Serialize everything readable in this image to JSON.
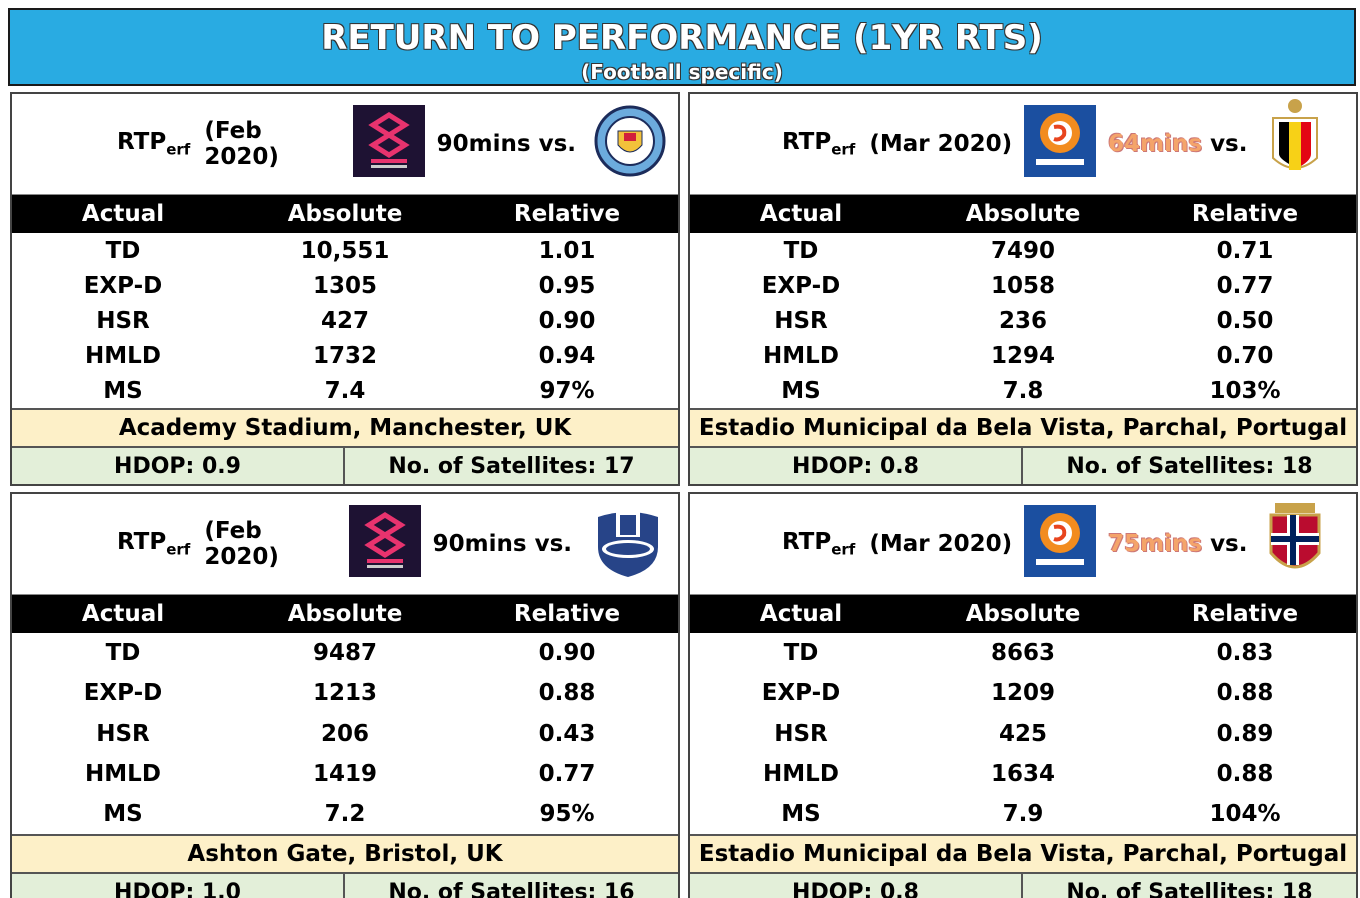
{
  "header": {
    "title": "RETURN TO PERFORMANCE (1YR RTS)",
    "subtitle": "(Football specific)"
  },
  "panels": [
    {
      "rtp": "RTP",
      "rtp_sub": "erf",
      "date": "(Feb 2020)",
      "minutes": "90mins",
      "minutes_color": "#000000",
      "vs": "vs.",
      "columns": [
        "Actual",
        "Absolute",
        "Relative"
      ],
      "rows": [
        [
          "TD",
          "10,551",
          "1.01"
        ],
        [
          "EXP-D",
          "1305",
          "0.95"
        ],
        [
          "HSR",
          "427",
          "0.90"
        ],
        [
          "HMLD",
          "1732",
          "0.94"
        ],
        [
          "MS",
          "7.4",
          "97%"
        ]
      ],
      "location": "Academy Stadium, Manchester, UK",
      "hdop": "HDOP: 0.9",
      "satellites": "No. of Satellites: 17"
    },
    {
      "rtp": "RTP",
      "rtp_sub": "erf",
      "date": "(Mar 2020)",
      "minutes": "64mins",
      "minutes_color": "#f4a46a",
      "vs": "vs.",
      "columns": [
        "Actual",
        "Absolute",
        "Relative"
      ],
      "rows": [
        [
          "TD",
          "7490",
          "0.71"
        ],
        [
          "EXP-D",
          "1058",
          "0.77"
        ],
        [
          "HSR",
          "236",
          "0.50"
        ],
        [
          "HMLD",
          "1294",
          "0.70"
        ],
        [
          "MS",
          "7.8",
          "103%"
        ]
      ],
      "location": "Estadio Municipal da Bela Vista, Parchal, Portugal",
      "hdop": "HDOP: 0.8",
      "satellites": "No. of Satellites: 18"
    },
    {
      "rtp": "RTP",
      "rtp_sub": "erf",
      "date": "(Feb 2020)",
      "minutes": "90mins",
      "minutes_color": "#000000",
      "vs": "vs.",
      "columns": [
        "Actual",
        "Absolute",
        "Relative"
      ],
      "rows": [
        [
          "TD",
          "9487",
          "0.90"
        ],
        [
          "EXP-D",
          "1213",
          "0.88"
        ],
        [
          "HSR",
          "206",
          "0.43"
        ],
        [
          "HMLD",
          "1419",
          "0.77"
        ],
        [
          "MS",
          "7.2",
          "95%"
        ]
      ],
      "location": "Ashton Gate, Bristol, UK",
      "hdop": "HDOP: 1.0",
      "satellites": "No. of Satellites: 16"
    },
    {
      "rtp": "RTP",
      "rtp_sub": "erf",
      "date": "(Mar 2020)",
      "minutes": "75mins",
      "minutes_color": "#f4a46a",
      "vs": "vs.",
      "columns": [
        "Actual",
        "Absolute",
        "Relative"
      ],
      "rows": [
        [
          "TD",
          "8663",
          "0.83"
        ],
        [
          "EXP-D",
          "1209",
          "0.88"
        ],
        [
          "HSR",
          "425",
          "0.89"
        ],
        [
          "HMLD",
          "1634",
          "0.88"
        ],
        [
          "MS",
          "7.9",
          "104%"
        ]
      ],
      "location": "Estadio Municipal da Bela Vista, Parchal, Portugal",
      "hdop": "HDOP: 0.8",
      "satellites": "No. of Satellites: 18"
    }
  ]
}
